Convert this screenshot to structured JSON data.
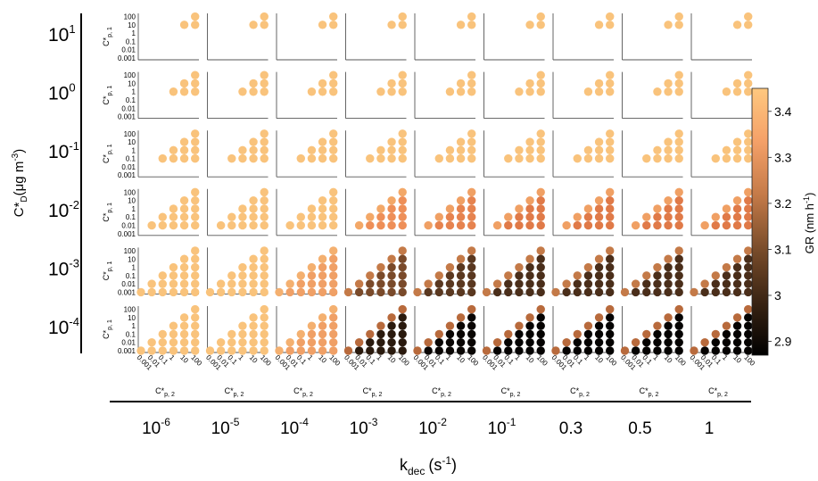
{
  "chart_data": {
    "type": "scatter",
    "layout": "small-multiples grid",
    "row_axis": {
      "label": "C*D (μg m-3)",
      "label_main": "C*",
      "label_sub": "D",
      "label_unit": "(μg m",
      "label_unit_sup": "-3",
      "label_unit_close": ")",
      "rows": [
        {
          "base": "10",
          "exp": "1"
        },
        {
          "base": "10",
          "exp": "0"
        },
        {
          "base": "10",
          "exp": "-1"
        },
        {
          "base": "10",
          "exp": "-2"
        },
        {
          "base": "10",
          "exp": "-3"
        },
        {
          "base": "10",
          "exp": "-4"
        }
      ]
    },
    "column_axis": {
      "label": "kdec (s-1)",
      "label_main": "k",
      "label_sub": "dec",
      "label_unit": "(s",
      "label_unit_sup": "-1",
      "label_unit_close": ")",
      "columns": [
        {
          "base": "10",
          "exp": "-6"
        },
        {
          "base": "10",
          "exp": "-5"
        },
        {
          "base": "10",
          "exp": "-4"
        },
        {
          "base": "10",
          "exp": "-3"
        },
        {
          "base": "10",
          "exp": "-2"
        },
        {
          "base": "10",
          "exp": "-1"
        },
        {
          "base": "0.3",
          "exp": ""
        },
        {
          "base": "0.5",
          "exp": ""
        },
        {
          "base": "1",
          "exp": ""
        }
      ]
    },
    "panel_axes": {
      "y_label_main": "C*",
      "y_label_sub": "p, 1",
      "x_label_main": "C*",
      "x_label_sub": "p, 2",
      "scale": "log",
      "ticks": [
        "0.001",
        "0.01",
        "0.1",
        "1",
        "10",
        "100"
      ],
      "xlim": [
        0.001,
        100
      ],
      "ylim": [
        0.001,
        100
      ]
    },
    "grid": false,
    "colorbar": {
      "label": "GR (nm h-1)",
      "label_main": "GR (nm h",
      "label_sup": "-1",
      "label_close": ")",
      "min": 2.87,
      "max": 3.45,
      "ticks": [
        "2.9",
        "3",
        "3.1",
        "3.2",
        "3.3",
        "3.4"
      ],
      "tick_values": [
        2.9,
        3.0,
        3.1,
        3.2,
        3.3,
        3.4
      ],
      "colormap": "copper",
      "colors": [
        "#000000",
        "#3a2413",
        "#7a4d2b",
        "#c47a48",
        "#f4a068",
        "#ffc87f"
      ],
      "placement": "right"
    },
    "panel_points_rule": "points at (Cp2, Cp1) with Cp2 >= Cp1, Cp1 >= row C*D (log grid 0.001..100)",
    "panel_colors": [
      [
        "#f9c37c",
        "#f9c37c",
        "#f9c37c",
        "#f9c37c",
        "#f9c37c",
        "#f9c37c",
        "#f9c37c",
        "#f9c37c",
        "#f9c37c"
      ],
      [
        "#f9c37c",
        "#f9c37c",
        "#f9c37c",
        "#f9c37c",
        "#f9c37c",
        "#f9c37c",
        "#f9c37c",
        "#f9c37c",
        "#f9c37c"
      ],
      [
        "#f9c37c",
        "#f9c37c",
        "#f9c37c",
        "#f9c37c",
        "#f9c37c",
        "#f9c37c",
        "#f9c37c",
        "#f9c37c",
        "#f9c37c"
      ],
      [
        "#f9c37c",
        "#f9c37c",
        "#f9c37c",
        "#ee8f58",
        "#e6834f",
        "#e07a48",
        "#e07a48",
        "#e07a48",
        "#e07a48"
      ],
      [
        "#f9c37c",
        "#f9c37c",
        "#f0a066",
        "#7a4a2a",
        "#5a3820",
        "#4a2e1a",
        "#4a2e1a",
        "#4a2e1a",
        "#4a2e1a"
      ],
      [
        "#f9c37c",
        "#f9c37c",
        "#f0a066",
        "#2a1a0e",
        "#0a0604",
        "#050302",
        "#050302",
        "#050302",
        "#050302"
      ]
    ],
    "edge_colors": [
      [
        "#f9c37c",
        "#f9c37c",
        "#f9c37c",
        "#f9c37c",
        "#f9c37c",
        "#f9c37c",
        "#f9c37c",
        "#f9c37c",
        "#f9c37c"
      ],
      [
        "#f9c37c",
        "#f9c37c",
        "#f9c37c",
        "#f9c37c",
        "#f9c37c",
        "#f9c37c",
        "#f9c37c",
        "#f9c37c",
        "#f9c37c"
      ],
      [
        "#f9c37c",
        "#f9c37c",
        "#f9c37c",
        "#f9c37c",
        "#f9c37c",
        "#f9c37c",
        "#f9c37c",
        "#f9c37c",
        "#f9c37c"
      ],
      [
        "#f9c37c",
        "#f9c37c",
        "#f9c37c",
        "#f3a868",
        "#f0a064",
        "#f0a064",
        "#f0a064",
        "#f0a064",
        "#f0a064"
      ],
      [
        "#f9c37c",
        "#f9c37c",
        "#f4b070",
        "#c47a48",
        "#c47a48",
        "#c47a48",
        "#c47a48",
        "#c47a48",
        "#c47a48"
      ],
      [
        "#f9c37c",
        "#f9c37c",
        "#f4b070",
        "#b86a3c",
        "#b86a3c",
        "#b86a3c",
        "#b86a3c",
        "#b86a3c",
        "#b86a3c"
      ]
    ]
  }
}
